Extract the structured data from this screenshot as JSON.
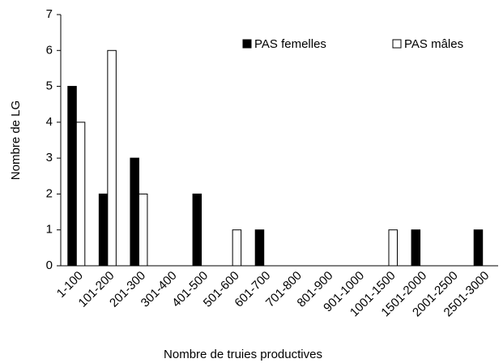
{
  "chart_data": {
    "type": "bar",
    "x_label": "Nombre de truies productives",
    "y_label": "Nombre de LG",
    "categories": [
      "1-100",
      "101-200",
      "201-300",
      "301-400",
      "401-500",
      "501-600",
      "601-700",
      "701-800",
      "801-900",
      "901-1000",
      "1001-1500",
      "1501-2000",
      "2001-2500",
      "2501-3000"
    ],
    "series": [
      {
        "name": "PAS femelles",
        "color": "#000000",
        "values": [
          5,
          2,
          3,
          0,
          2,
          0,
          1,
          0,
          0,
          0,
          0,
          1,
          0,
          1
        ]
      },
      {
        "name": "PAS mâles",
        "color": "#ffffff",
        "values": [
          4,
          6,
          2,
          0,
          0,
          1,
          0,
          0,
          0,
          0,
          1,
          0,
          0,
          0
        ]
      }
    ],
    "ylim": [
      0,
      7
    ],
    "yticks": [
      0,
      1,
      2,
      3,
      4,
      5,
      6,
      7
    ],
    "grid": false,
    "legend": "top-right"
  }
}
